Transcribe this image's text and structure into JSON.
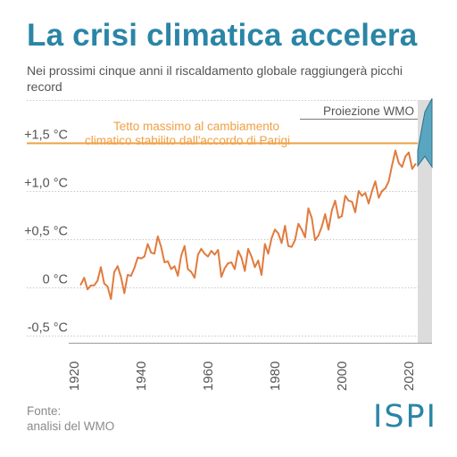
{
  "title": "La crisi climatica accelera",
  "subtitle": "Nei prossimi cinque anni il riscaldamento globale raggiungerà picchi record",
  "source": {
    "line1": "Fonte:",
    "line2": "analisi del WMO"
  },
  "logo": "ISPI",
  "colors": {
    "title": "#2a85a6",
    "series": "#e07b3e",
    "threshold": "#f0a045",
    "projection_fill": "#5aa6c0",
    "projection_band": "#dcdcdc",
    "grid": "#c8c8c8",
    "text": "#555555",
    "source": "#8a8a8a"
  },
  "chart_data": {
    "type": "line",
    "xlabel": "",
    "ylabel": "",
    "xlim": [
      1918,
      2028
    ],
    "ylim": [
      -0.6,
      2.0
    ],
    "grid": true,
    "x_ticks": [
      1920,
      1940,
      1960,
      1980,
      2000,
      2020
    ],
    "y_ticks": [
      {
        "value": -0.5,
        "label": "-0,5 °C"
      },
      {
        "value": 0,
        "label": "0 °C"
      },
      {
        "value": 0.5,
        "label": "+0,5 °C"
      },
      {
        "value": 1.0,
        "label": "+1,0 °C"
      },
      {
        "value": 1.5,
        "label": "+1,5 °C"
      }
    ],
    "series": [
      {
        "x": [
          1922,
          1923,
          1924,
          1925,
          1926,
          1927,
          1928,
          1929,
          1930,
          1931,
          1932,
          1933,
          1934,
          1935,
          1936,
          1937,
          1938,
          1939,
          1940,
          1941,
          1942,
          1943,
          1944,
          1945,
          1946,
          1947,
          1948,
          1949,
          1950,
          1951,
          1952,
          1953,
          1954,
          1955,
          1956,
          1957,
          1958,
          1959,
          1960,
          1961,
          1962,
          1963,
          1964,
          1965,
          1966,
          1967,
          1968,
          1969,
          1970,
          1971,
          1972,
          1973,
          1974,
          1975,
          1976,
          1977,
          1978,
          1979,
          1980,
          1981,
          1982,
          1983,
          1984,
          1985,
          1986,
          1987,
          1988,
          1989,
          1990,
          1991,
          1992,
          1993,
          1994,
          1995,
          1996,
          1997,
          1998,
          1999,
          2000,
          2001,
          2002,
          2003,
          2004,
          2005,
          2006,
          2007,
          2008,
          2009,
          2010,
          2011,
          2012,
          2013,
          2014,
          2015,
          2016,
          2017,
          2018,
          2019,
          2020,
          2021,
          2022
        ],
        "values": [
          0.03,
          0.1,
          -0.02,
          0.02,
          0.02,
          0.07,
          0.21,
          0.04,
          0.01,
          -0.12,
          0.16,
          0.22,
          0.11,
          -0.06,
          0.13,
          0.12,
          0.2,
          0.31,
          0.3,
          0.32,
          0.45,
          0.36,
          0.35,
          0.53,
          0.42,
          0.26,
          0.27,
          0.19,
          0.22,
          0.12,
          0.33,
          0.43,
          0.19,
          0.16,
          0.1,
          0.34,
          0.4,
          0.35,
          0.32,
          0.38,
          0.34,
          0.39,
          0.11,
          0.2,
          0.25,
          0.26,
          0.19,
          0.38,
          0.31,
          0.17,
          0.4,
          0.32,
          0.21,
          0.28,
          0.13,
          0.45,
          0.35,
          0.51,
          0.6,
          0.56,
          0.46,
          0.64,
          0.43,
          0.42,
          0.49,
          0.66,
          0.6,
          0.52,
          0.82,
          0.72,
          0.49,
          0.54,
          0.63,
          0.76,
          0.6,
          0.8,
          0.9,
          0.72,
          0.74,
          0.95,
          0.9,
          0.89,
          0.78,
          1.0,
          0.95,
          0.98,
          0.87,
          1.0,
          1.1,
          0.93,
          1.0,
          1.03,
          1.1,
          1.27,
          1.42,
          1.29,
          1.25,
          1.36,
          1.4,
          1.23,
          1.28
        ]
      }
    ],
    "annotations": {
      "threshold": {
        "value": 1.5,
        "label_line1": "Tetto massimo al cambiamento",
        "label_line2": "climatico stabilito dall'accordo di Parigi"
      },
      "projection": {
        "label": "Proiezione WMO",
        "x_start": 2023,
        "x_end": 2027,
        "upper": [
          1.42,
          1.82,
          1.96
        ],
        "lower": [
          1.26,
          1.36,
          1.25
        ]
      }
    }
  }
}
